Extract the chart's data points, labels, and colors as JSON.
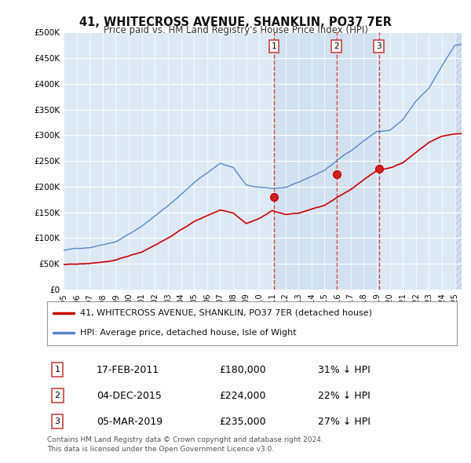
{
  "title": "41, WHITECROSS AVENUE, SHANKLIN, PO37 7ER",
  "subtitle": "Price paid vs. HM Land Registry's House Price Index (HPI)",
  "ylabel_ticks": [
    "£0",
    "£50K",
    "£100K",
    "£150K",
    "£200K",
    "£250K",
    "£300K",
    "£350K",
    "£400K",
    "£450K",
    "£500K"
  ],
  "ytick_values": [
    0,
    50000,
    100000,
    150000,
    200000,
    250000,
    300000,
    350000,
    400000,
    450000,
    500000
  ],
  "ylim": [
    0,
    500000
  ],
  "xlim_start": 1995.0,
  "xlim_end": 2025.5,
  "background_color": "#dce9f5",
  "hpi_line_color": "#5588cc",
  "price_line_color": "#cc0000",
  "vline_color": "#cc4444",
  "highlight_color": "#c8d8ee",
  "sales": [
    {
      "date": 2011.12,
      "price": 180000,
      "label": "1"
    },
    {
      "date": 2015.92,
      "price": 224000,
      "label": "2"
    },
    {
      "date": 2019.17,
      "price": 235000,
      "label": "3"
    }
  ],
  "sale_labels": [
    {
      "num": "1",
      "date": "17-FEB-2011",
      "price": "£180,000",
      "pct": "31% ↓ HPI"
    },
    {
      "num": "2",
      "date": "04-DEC-2015",
      "price": "£224,000",
      "pct": "22% ↓ HPI"
    },
    {
      "num": "3",
      "date": "05-MAR-2019",
      "price": "£235,000",
      "pct": "27% ↓ HPI"
    }
  ],
  "legend_entries": [
    "41, WHITECROSS AVENUE, SHANKLIN, PO37 7ER (detached house)",
    "HPI: Average price, detached house, Isle of Wight"
  ],
  "footer": "Contains HM Land Registry data © Crown copyright and database right 2024.\nThis data is licensed under the Open Government Licence v3.0.",
  "xtick_years": [
    1995,
    1996,
    1997,
    1998,
    1999,
    2000,
    2001,
    2002,
    2003,
    2004,
    2005,
    2006,
    2007,
    2008,
    2009,
    2010,
    2011,
    2012,
    2013,
    2014,
    2015,
    2016,
    2017,
    2018,
    2019,
    2020,
    2021,
    2022,
    2023,
    2024,
    2025
  ],
  "hpi_anchors_x": [
    1995,
    1997,
    1999,
    2001,
    2003,
    2005,
    2007,
    2008,
    2009,
    2010,
    2011,
    2012,
    2013,
    2014,
    2015,
    2016,
    2017,
    2018,
    2019,
    2020,
    2021,
    2022,
    2023,
    2024,
    2025
  ],
  "hpi_anchors_y": [
    76000,
    82000,
    95000,
    125000,
    165000,
    210000,
    248000,
    240000,
    205000,
    200000,
    198000,
    200000,
    208000,
    220000,
    232000,
    252000,
    270000,
    290000,
    308000,
    310000,
    330000,
    365000,
    390000,
    435000,
    475000
  ],
  "price_anchors_x": [
    1995,
    1997,
    1999,
    2001,
    2003,
    2005,
    2007,
    2008,
    2009,
    2010,
    2011,
    2012,
    2013,
    2014,
    2015,
    2016,
    2017,
    2018,
    2019,
    2020,
    2021,
    2022,
    2023,
    2024,
    2025
  ],
  "price_anchors_y": [
    48000,
    50000,
    56000,
    72000,
    100000,
    132000,
    155000,
    150000,
    130000,
    140000,
    155000,
    148000,
    150000,
    158000,
    165000,
    180000,
    195000,
    215000,
    232000,
    238000,
    248000,
    268000,
    288000,
    300000,
    305000
  ]
}
